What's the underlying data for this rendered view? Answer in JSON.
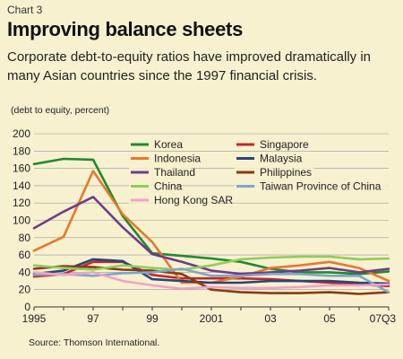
{
  "header": {
    "chart_number": "Chart 3",
    "title": "Improving balance sheets",
    "subtitle": "Corporate debt-to-equity ratios have improved dramatically in many Asian countries since the 1997 financial crisis.",
    "unit_note": "(debt to equity, percent)"
  },
  "footer": {
    "source": "Source: Thomson International."
  },
  "chart_data": {
    "type": "line",
    "title": "Improving balance sheets",
    "ylabel": "debt to equity, percent",
    "xlabel": "",
    "ylim": [
      0,
      200
    ],
    "yticks": [
      0,
      20,
      40,
      60,
      80,
      100,
      120,
      140,
      160,
      180,
      200
    ],
    "x": [
      "1995",
      "1996",
      "97",
      "98",
      "99",
      "2000",
      "2001",
      "02",
      "03",
      "04",
      "05",
      "06",
      "07Q3"
    ],
    "xticks": [
      {
        "label": "1995",
        "index": 0
      },
      {
        "label": "97",
        "index": 2
      },
      {
        "label": "99",
        "index": 4
      },
      {
        "label": "2001",
        "index": 6
      },
      {
        "label": "03",
        "index": 8
      },
      {
        "label": "05",
        "index": 10
      },
      {
        "label": "07Q3",
        "index": 12
      }
    ],
    "grid": "horizontal",
    "legend_position": "top-center",
    "series": [
      {
        "name": "Korea",
        "color": "#1f8a2e",
        "values": [
          165,
          171,
          170,
          105,
          62,
          59,
          56,
          52,
          44,
          40,
          40,
          38,
          41
        ]
      },
      {
        "name": "Singapore",
        "color": "#c1282d",
        "values": [
          35,
          38,
          52,
          52,
          37,
          33,
          33,
          33,
          32,
          30,
          28,
          26,
          24
        ]
      },
      {
        "name": "Indonesia",
        "color": "#e8782c",
        "values": [
          65,
          81,
          157,
          107,
          75,
          28,
          28,
          35,
          45,
          48,
          52,
          45,
          30
        ]
      },
      {
        "name": "Malaysia",
        "color": "#27457c",
        "values": [
          38,
          42,
          55,
          53,
          32,
          30,
          28,
          28,
          30,
          30,
          30,
          28,
          27
        ]
      },
      {
        "name": "Thailand",
        "color": "#6f3c88",
        "values": [
          91,
          110,
          127,
          92,
          61,
          52,
          42,
          38,
          40,
          42,
          45,
          40,
          44
        ]
      },
      {
        "name": "Philippines",
        "color": "#8b3a14",
        "values": [
          44,
          47,
          46,
          43,
          42,
          38,
          20,
          17,
          16,
          16,
          17,
          15,
          17
        ]
      },
      {
        "name": "China",
        "color": "#8fcd5a",
        "values": [
          48,
          45,
          43,
          48,
          45,
          43,
          48,
          55,
          57,
          58,
          58,
          55,
          56
        ]
      },
      {
        "name": "Taiwan Province of China",
        "color": "#7ea6c9",
        "values": [
          37,
          38,
          36,
          39,
          40,
          44,
          36,
          36,
          38,
          38,
          36,
          36,
          17
        ]
      },
      {
        "name": "Hong Kong SAR",
        "color": "#f0a3c6",
        "values": [
          40,
          37,
          40,
          30,
          25,
          21,
          23,
          22,
          22,
          23,
          25,
          25,
          26
        ]
      }
    ]
  }
}
